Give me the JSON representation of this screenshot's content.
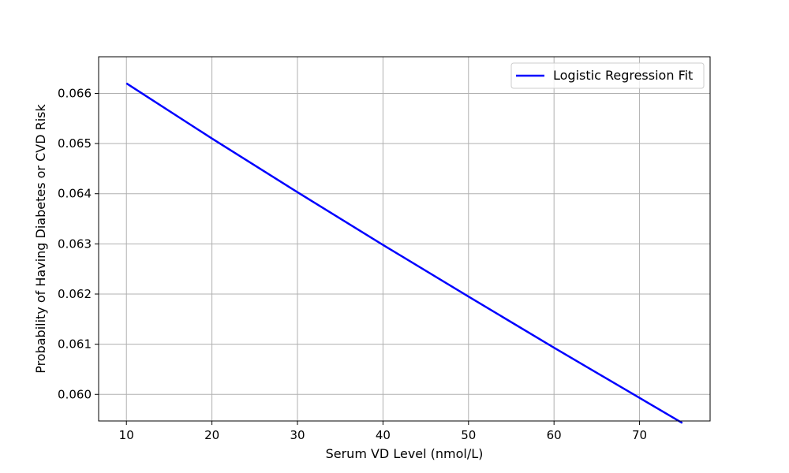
{
  "chart_data": {
    "type": "line",
    "title": "",
    "xlabel": "Serum VD Level (nmol/L)",
    "ylabel": "Probability of Having Diabetes or CVD Risk",
    "xlim": [
      6.75,
      78.25
    ],
    "ylim": [
      0.05947,
      0.06673
    ],
    "xticks": [
      10,
      20,
      30,
      40,
      50,
      60,
      70
    ],
    "yticks": [
      0.06,
      0.061,
      0.062,
      0.063,
      0.064,
      0.065,
      0.066
    ],
    "ytick_labels": [
      "0.060",
      "0.061",
      "0.062",
      "0.063",
      "0.064",
      "0.065",
      "0.066"
    ],
    "grid": true,
    "legend": {
      "position": "top-right"
    },
    "series": [
      {
        "name": "Logistic Regression Fit",
        "color": "#0000ff",
        "x": [
          10,
          20,
          30,
          40,
          50,
          60,
          70,
          75
        ],
        "y": [
          0.0662,
          0.0651,
          0.06403,
          0.06298,
          0.06195,
          0.06093,
          0.05993,
          0.05943
        ]
      }
    ]
  }
}
